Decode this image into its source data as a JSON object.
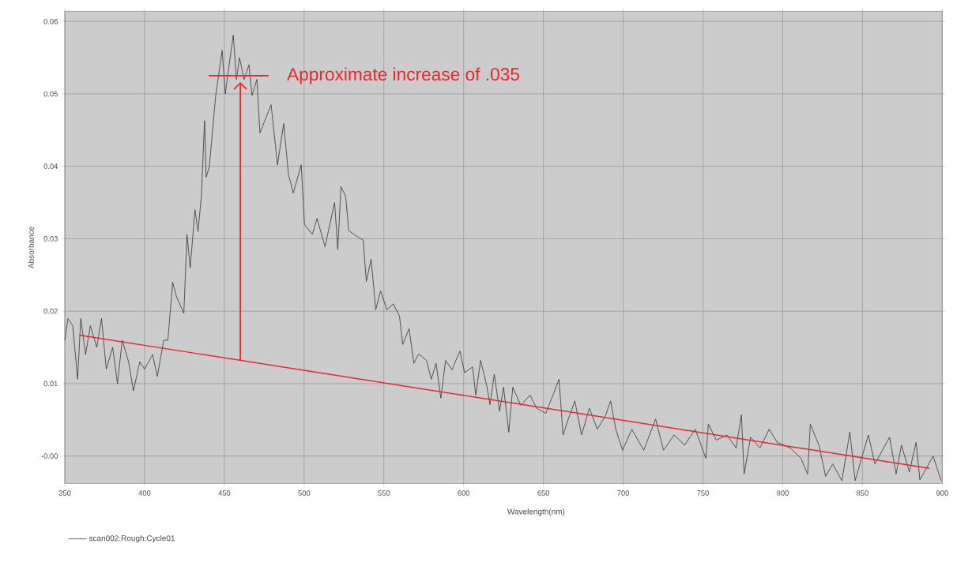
{
  "chart_data": {
    "type": "line",
    "xlabel": "Wavelength(nm)",
    "ylabel": "Absorbance",
    "xlim": [
      350,
      900
    ],
    "ylim": [
      -0.0038,
      0.0614
    ],
    "xticks": [
      350,
      400,
      450,
      500,
      550,
      600,
      650,
      700,
      750,
      800,
      850,
      900
    ],
    "yticks": [
      {
        "value": 0,
        "label": "-0.00"
      },
      0.01,
      0.02,
      0.03,
      0.04,
      0.05,
      0.06
    ],
    "grid": true,
    "legend": "bottom left",
    "series": [
      {
        "name": "scan002:Rough:Cycle01",
        "color": "#333333",
        "x": [
          350,
          352,
          355,
          358,
          360,
          363,
          366,
          370,
          373,
          376,
          380,
          383,
          386,
          390,
          393,
          397,
          400,
          405,
          408,
          412,
          414.6,
          417.6,
          420,
          424.6,
          426.6,
          428.6,
          431.6,
          433.5,
          435.6,
          437.6,
          438.6,
          440.6,
          444.6,
          448.6,
          450.6,
          453,
          455.6,
          457.6,
          459.5,
          462.4,
          465.4,
          467.4,
          470.4,
          472.3,
          479.3,
          483.3,
          487.2,
          490.2,
          493.2,
          498.2,
          500.2,
          505.1,
          508.1,
          513.1,
          519.1,
          521.1,
          523.1,
          526.0,
          528.0,
          534.0,
          537.0,
          539.0,
          542.0,
          544.9,
          547.9,
          551.9,
          555.9,
          559.8,
          561.8,
          565.8,
          568.8,
          571.8,
          576.7,
          579.7,
          582.7,
          585.7,
          588.7,
          592.7,
          597.6,
          600.6,
          605.6,
          607.6,
          610.6,
          614.5,
          616.5,
          619.2,
          622.5,
          625.0,
          628.3,
          630.8,
          635.8,
          641.6,
          645.7,
          651.5,
          656.5,
          659.8,
          662.3,
          665.6,
          669.7,
          673.9,
          678.8,
          683.8,
          688.8,
          692.1,
          695.4,
          699.6,
          705.4,
          712.9,
          720.3,
          725.3,
          731.9,
          738.5,
          745.2,
          751.8,
          753.4,
          758.4,
          765.1,
          770.8,
          774.1,
          775.8,
          779.9,
          785.7,
          791.5,
          796.5,
          804.8,
          811.4,
          815.6,
          817.3,
          822.7,
          826.9,
          831.3,
          837.1,
          842.1,
          845.4,
          853.7,
          857.8,
          867.0,
          871.1,
          874.4,
          879.4,
          883.6,
          886.0,
          894.3,
          899.3
        ],
        "values": [
          0.016,
          0.019,
          0.018,
          0.0106,
          0.019,
          0.014,
          0.018,
          0.015,
          0.019,
          0.012,
          0.015,
          0.01,
          0.016,
          0.013,
          0.009,
          0.013,
          0.012,
          0.014,
          0.011,
          0.016,
          0.016,
          0.024,
          0.022,
          0.0197,
          0.0306,
          0.026,
          0.034,
          0.031,
          0.0359,
          0.0463,
          0.0385,
          0.04,
          0.0498,
          0.056,
          0.05,
          0.054,
          0.0581,
          0.052,
          0.055,
          0.052,
          0.054,
          0.0498,
          0.052,
          0.0446,
          0.0485,
          0.0402,
          0.0459,
          0.0389,
          0.0363,
          0.0402,
          0.032,
          0.0306,
          0.0328,
          0.0289,
          0.035,
          0.0285,
          0.0372,
          0.0359,
          0.0311,
          0.0302,
          0.0298,
          0.0241,
          0.0272,
          0.0202,
          0.0228,
          0.0202,
          0.021,
          0.0193,
          0.0154,
          0.0176,
          0.0128,
          0.0141,
          0.0132,
          0.0106,
          0.0128,
          0.008,
          0.0132,
          0.0119,
          0.0145,
          0.0115,
          0.0123,
          0.0084,
          0.0132,
          0.0097,
          0.0071,
          0.0113,
          0.0062,
          0.0095,
          0.0033,
          0.0095,
          0.007,
          0.0084,
          0.0066,
          0.0059,
          0.0087,
          0.0106,
          0.0029,
          0.0051,
          0.0076,
          0.0029,
          0.0066,
          0.0037,
          0.0055,
          0.0076,
          0.0037,
          0.0008,
          0.0037,
          0.0008,
          0.0051,
          0.0008,
          0.0029,
          0.0015,
          0.0037,
          -0.0003,
          0.0044,
          0.0022,
          0.0029,
          0.0011,
          0.0057,
          -0.0025,
          0.0026,
          0.0011,
          0.0037,
          0.0019,
          0.0011,
          -0.0003,
          -0.0025,
          0.0044,
          0.0015,
          -0.0028,
          -0.0011,
          -0.0034,
          0.0033,
          -0.0034,
          0.0029,
          -0.0011,
          0.0026,
          -0.0025,
          0.0015,
          -0.0022,
          0.0019,
          -0.0033,
          0.0,
          -0.0034
        ]
      },
      {
        "type": "line",
        "color": "#e8262b",
        "x": [
          359,
          892
        ],
        "values": [
          0.0167,
          -0.0017
        ]
      }
    ],
    "annotations": [
      {
        "text": "Approximate increase of .035",
        "x": 460,
        "y": 0.0525
      }
    ]
  }
}
